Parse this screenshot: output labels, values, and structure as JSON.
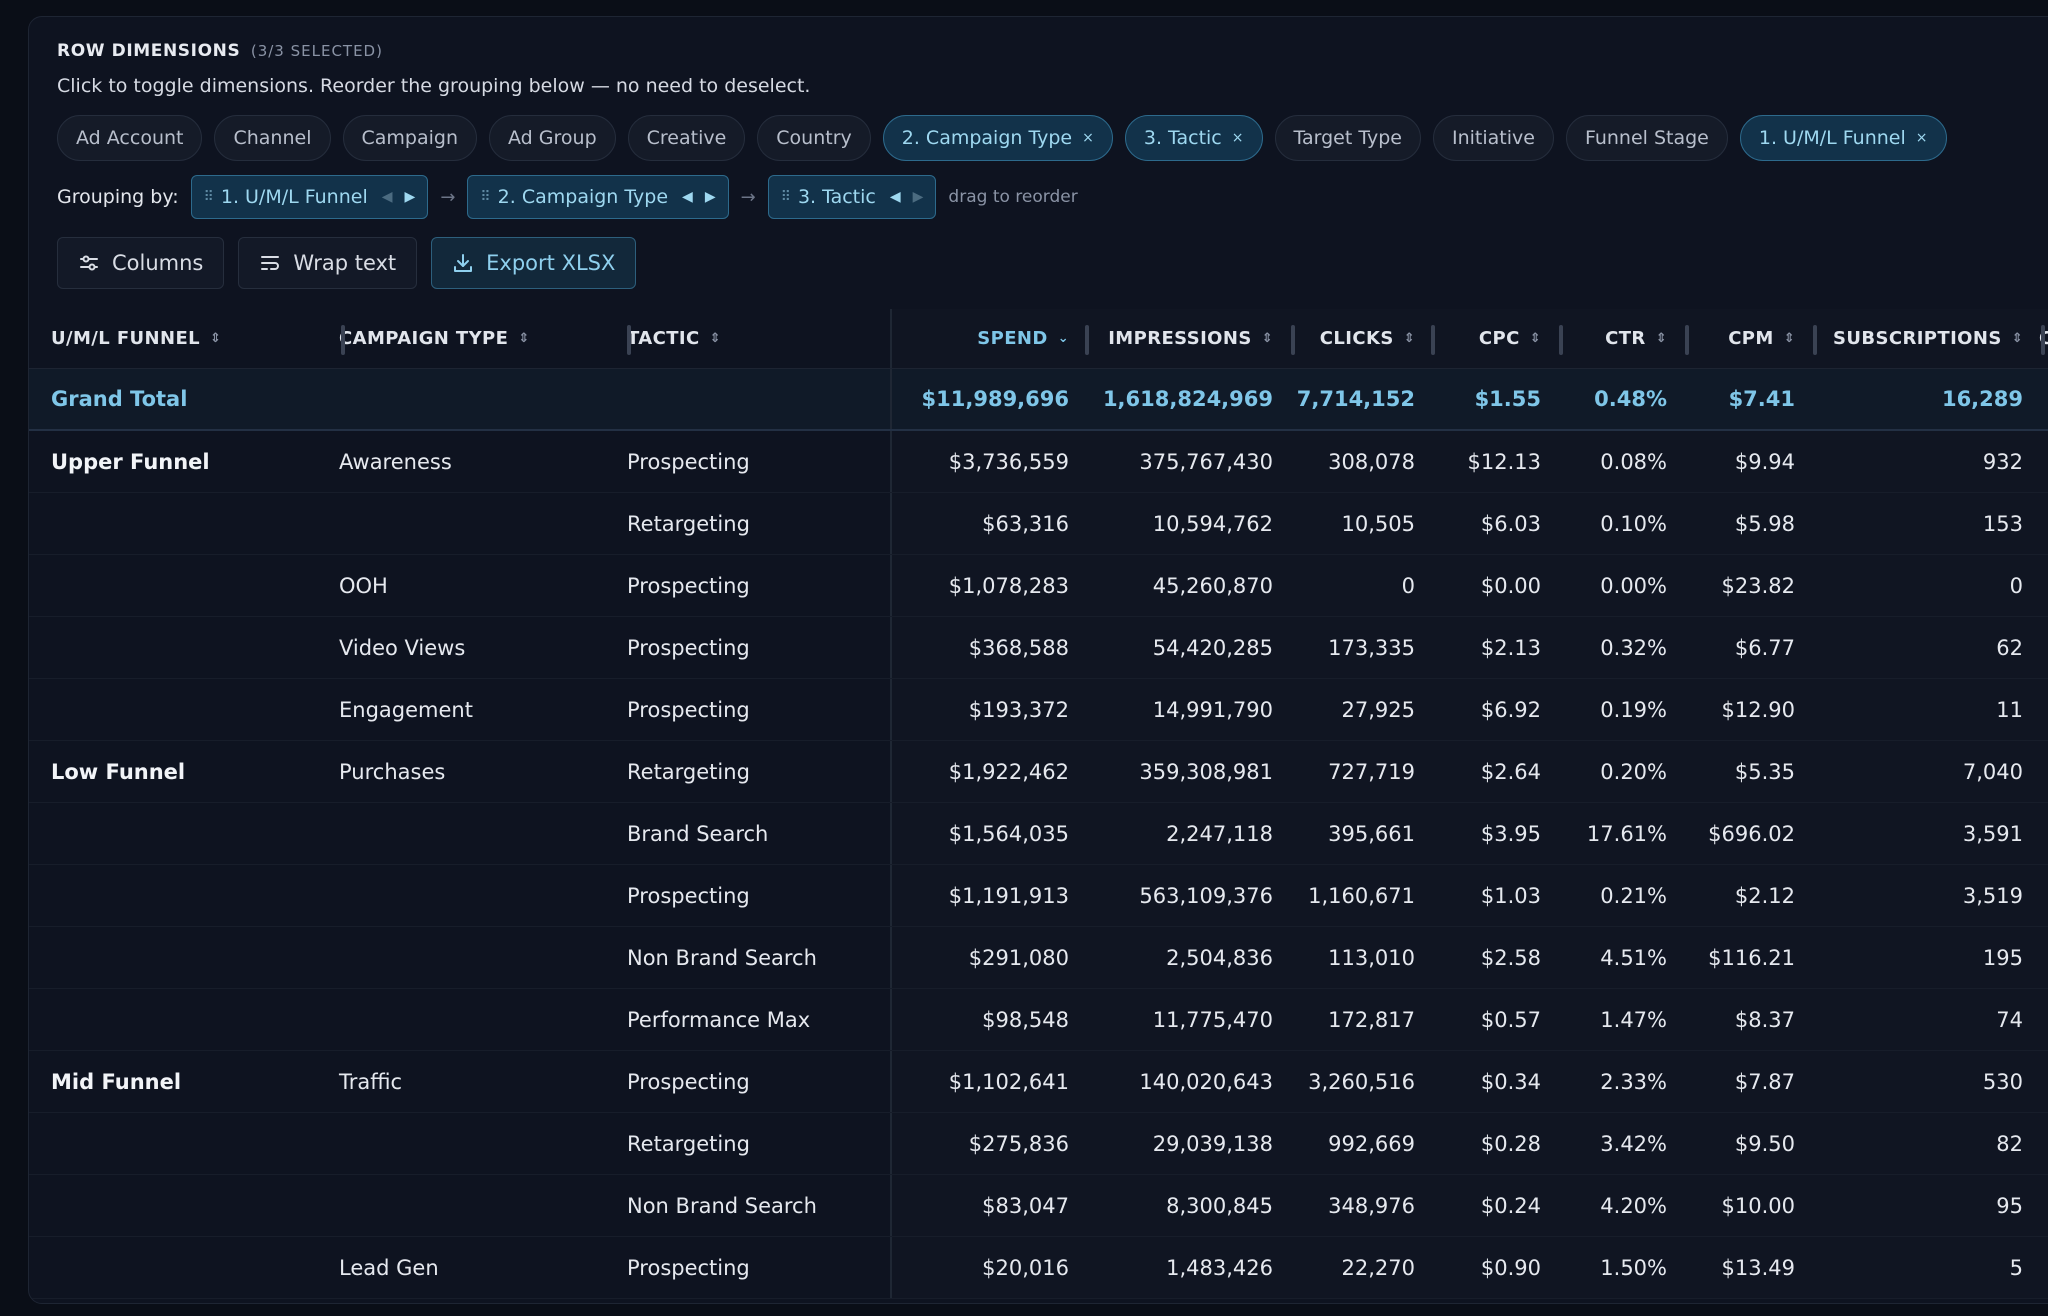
{
  "dimensions": {
    "title": "ROW DIMENSIONS",
    "selected_label": "(3/3 SELECTED)",
    "help": "Click to toggle dimensions. Reorder the grouping below — no need to deselect.",
    "chips": [
      {
        "label": "Ad Account",
        "active": false
      },
      {
        "label": "Channel",
        "active": false
      },
      {
        "label": "Campaign",
        "active": false
      },
      {
        "label": "Ad Group",
        "active": false
      },
      {
        "label": "Creative",
        "active": false
      },
      {
        "label": "Country",
        "active": false
      },
      {
        "label": "2. Campaign Type",
        "active": true
      },
      {
        "label": "3. Tactic",
        "active": true
      },
      {
        "label": "Target Type",
        "active": false
      },
      {
        "label": "Initiative",
        "active": false
      },
      {
        "label": "Funnel Stage",
        "active": false
      },
      {
        "label": "1. U/M/L Funnel",
        "active": true
      }
    ],
    "remove_glyph": "×"
  },
  "grouping": {
    "label": "Grouping by:",
    "items": [
      "1. U/M/L Funnel",
      "2. Campaign Type",
      "3. Tactic"
    ],
    "hint": "drag to reorder"
  },
  "toolbar": {
    "columns_label": "Columns",
    "wrap_label": "Wrap text",
    "export_label": "Export XLSX"
  },
  "table": {
    "headers": [
      "U/M/L FUNNEL",
      "CAMPAIGN TYPE",
      "TACTIC",
      "SPEND",
      "IMPRESSIONS",
      "CLICKS",
      "CPC",
      "CTR",
      "CPM",
      "SUBSCRIPTIONS",
      "C"
    ],
    "total": {
      "label": "Grand Total",
      "spend": "$11,989,696",
      "impressions": "1,618,824,969",
      "clicks": "7,714,152",
      "cpc": "$1.55",
      "ctr": "0.48%",
      "cpm": "$7.41",
      "subscriptions": "16,289"
    },
    "rows": [
      {
        "funnel": "Upper Funnel",
        "type": "Awareness",
        "tactic": "Prospecting",
        "spend": "$3,736,559",
        "impressions": "375,767,430",
        "clicks": "308,078",
        "cpc": "$12.13",
        "ctr": "0.08%",
        "cpm": "$9.94",
        "subscriptions": "932"
      },
      {
        "funnel": "",
        "type": "",
        "tactic": "Retargeting",
        "spend": "$63,316",
        "impressions": "10,594,762",
        "clicks": "10,505",
        "cpc": "$6.03",
        "ctr": "0.10%",
        "cpm": "$5.98",
        "subscriptions": "153"
      },
      {
        "funnel": "",
        "type": "OOH",
        "tactic": "Prospecting",
        "spend": "$1,078,283",
        "impressions": "45,260,870",
        "clicks": "0",
        "cpc": "$0.00",
        "ctr": "0.00%",
        "cpm": "$23.82",
        "subscriptions": "0"
      },
      {
        "funnel": "",
        "type": "Video Views",
        "tactic": "Prospecting",
        "spend": "$368,588",
        "impressions": "54,420,285",
        "clicks": "173,335",
        "cpc": "$2.13",
        "ctr": "0.32%",
        "cpm": "$6.77",
        "subscriptions": "62"
      },
      {
        "funnel": "",
        "type": "Engagement",
        "tactic": "Prospecting",
        "spend": "$193,372",
        "impressions": "14,991,790",
        "clicks": "27,925",
        "cpc": "$6.92",
        "ctr": "0.19%",
        "cpm": "$12.90",
        "subscriptions": "11"
      },
      {
        "funnel": "Low Funnel",
        "type": "Purchases",
        "tactic": "Retargeting",
        "spend": "$1,922,462",
        "impressions": "359,308,981",
        "clicks": "727,719",
        "cpc": "$2.64",
        "ctr": "0.20%",
        "cpm": "$5.35",
        "subscriptions": "7,040"
      },
      {
        "funnel": "",
        "type": "",
        "tactic": "Brand Search",
        "spend": "$1,564,035",
        "impressions": "2,247,118",
        "clicks": "395,661",
        "cpc": "$3.95",
        "ctr": "17.61%",
        "cpm": "$696.02",
        "subscriptions": "3,591"
      },
      {
        "funnel": "",
        "type": "",
        "tactic": "Prospecting",
        "spend": "$1,191,913",
        "impressions": "563,109,376",
        "clicks": "1,160,671",
        "cpc": "$1.03",
        "ctr": "0.21%",
        "cpm": "$2.12",
        "subscriptions": "3,519"
      },
      {
        "funnel": "",
        "type": "",
        "tactic": "Non Brand Search",
        "spend": "$291,080",
        "impressions": "2,504,836",
        "clicks": "113,010",
        "cpc": "$2.58",
        "ctr": "4.51%",
        "cpm": "$116.21",
        "subscriptions": "195"
      },
      {
        "funnel": "",
        "type": "",
        "tactic": "Performance Max",
        "spend": "$98,548",
        "impressions": "11,775,470",
        "clicks": "172,817",
        "cpc": "$0.57",
        "ctr": "1.47%",
        "cpm": "$8.37",
        "subscriptions": "74"
      },
      {
        "funnel": "Mid Funnel",
        "type": "Traffic",
        "tactic": "Prospecting",
        "spend": "$1,102,641",
        "impressions": "140,020,643",
        "clicks": "3,260,516",
        "cpc": "$0.34",
        "ctr": "2.33%",
        "cpm": "$7.87",
        "subscriptions": "530"
      },
      {
        "funnel": "",
        "type": "",
        "tactic": "Retargeting",
        "spend": "$275,836",
        "impressions": "29,039,138",
        "clicks": "992,669",
        "cpc": "$0.28",
        "ctr": "3.42%",
        "cpm": "$9.50",
        "subscriptions": "82"
      },
      {
        "funnel": "",
        "type": "",
        "tactic": "Non Brand Search",
        "spend": "$83,047",
        "impressions": "8,300,845",
        "clicks": "348,976",
        "cpc": "$0.24",
        "ctr": "4.20%",
        "cpm": "$10.00",
        "subscriptions": "95"
      },
      {
        "funnel": "",
        "type": "Lead Gen",
        "tactic": "Prospecting",
        "spend": "$20,016",
        "impressions": "1,483,426",
        "clicks": "22,270",
        "cpc": "$0.90",
        "ctr": "1.50%",
        "cpm": "$13.49",
        "subscriptions": "5"
      }
    ]
  }
}
